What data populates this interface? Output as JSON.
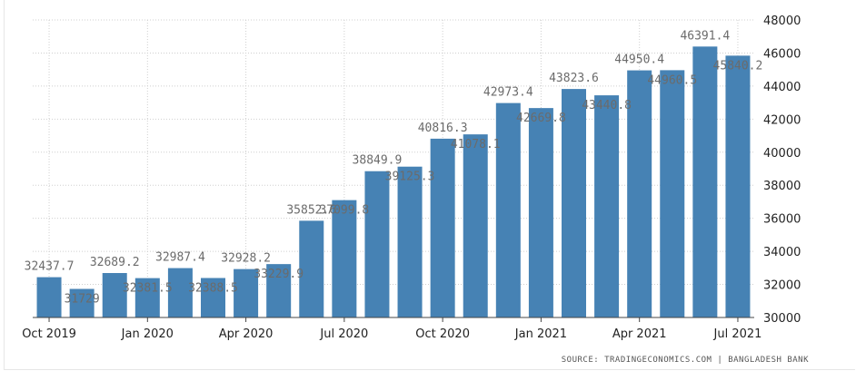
{
  "chart_data": {
    "type": "bar",
    "categories": [
      "Oct 2019",
      "Nov 2019",
      "Dec 2019",
      "Jan 2020",
      "Feb 2020",
      "Mar 2020",
      "Apr 2020",
      "May 2020",
      "Jun 2020",
      "Jul 2020",
      "Aug 2020",
      "Sep 2020",
      "Oct 2020",
      "Nov 2020",
      "Dec 2020",
      "Jan 2021",
      "Feb 2021",
      "Mar 2021",
      "Apr 2021",
      "May 2021",
      "Jun 2021",
      "Jul 2021"
    ],
    "values": [
      32437.7,
      31729,
      32689.2,
      32381.5,
      32987.4,
      32388.5,
      32928.2,
      33229.9,
      35852.6,
      37099.8,
      38849.9,
      39125.3,
      40816.3,
      41078.1,
      42973.4,
      42669.8,
      43823.6,
      43440.8,
      44950.4,
      44960.5,
      46391.4,
      45840.2
    ],
    "data_labels": [
      "32437.7",
      "31729",
      "32689.2",
      "32381.5",
      "32987.4",
      "32388.5",
      "32928.2",
      "33229.9",
      "35852.6",
      "37099.8",
      "38849.9",
      "39125.3",
      "40816.3",
      "41078.1",
      "42973.4",
      "42669.8",
      "43823.6",
      "43440.8",
      "44950.4",
      "44960.5",
      "46391.4",
      "45840.2"
    ],
    "x_tick_labels": [
      "Oct 2019",
      "Jan 2020",
      "Apr 2020",
      "Jul 2020",
      "Oct 2020",
      "Jan 2021",
      "Apr 2021",
      "Jul 2021"
    ],
    "y_tick_labels": [
      "30000",
      "32000",
      "34000",
      "36000",
      "38000",
      "40000",
      "42000",
      "44000",
      "46000",
      "48000"
    ],
    "ylim": [
      30000,
      48000
    ],
    "grid": true,
    "y_axis_position": "right",
    "bar_color": "#4682b4",
    "label_color": "#6b6b6b"
  },
  "source_text": "SOURCE: TRADINGECONOMICS.COM | BANGLADESH BANK"
}
